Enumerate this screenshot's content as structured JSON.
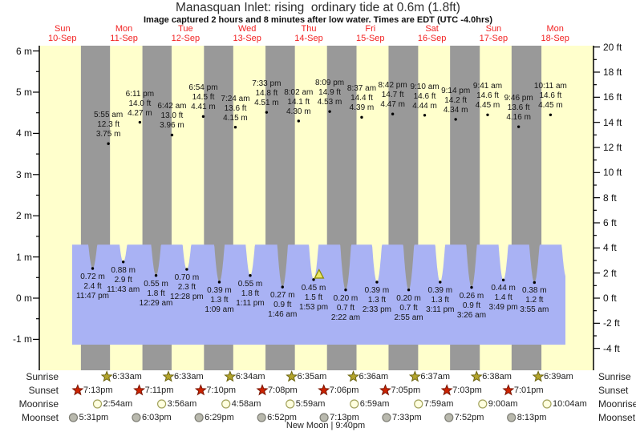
{
  "chart_data": {
    "type": "area",
    "title": "Manasquan Inlet: rising  ordinary tide at 0.6m (1.8ft)",
    "subtitle": "Image captured 2 hours and 8 minutes after low water. Times are EDT (UTC -4.0hrs)",
    "x_axis_days": [
      {
        "dow": "Sun",
        "date": "10-Sep"
      },
      {
        "dow": "Mon",
        "date": "11-Sep"
      },
      {
        "dow": "Tue",
        "date": "12-Sep"
      },
      {
        "dow": "Wed",
        "date": "13-Sep"
      },
      {
        "dow": "Thu",
        "date": "14-Sep"
      },
      {
        "dow": "Fri",
        "date": "15-Sep"
      },
      {
        "dow": "Sat",
        "date": "16-Sep"
      },
      {
        "dow": "Sun",
        "date": "17-Sep"
      },
      {
        "dow": "Mon",
        "date": "18-Sep"
      }
    ],
    "y_axis_left": {
      "unit": "m",
      "min": -1,
      "max": 6,
      "labels": [
        {
          "text": "6 m",
          "value": 6
        },
        {
          "text": "5 m",
          "value": 5
        },
        {
          "text": "4 m",
          "value": 4
        },
        {
          "text": "3 m",
          "value": 3
        },
        {
          "text": "2 m",
          "value": 2
        },
        {
          "text": "1 m",
          "value": 1
        },
        {
          "text": "0 m",
          "value": 0
        },
        {
          "text": "-1 m",
          "value": -1
        }
      ]
    },
    "y_axis_right": {
      "unit": "ft",
      "min": -4,
      "max": 20,
      "labels": [
        {
          "text": "20 ft",
          "value": 20
        },
        {
          "text": "18 ft",
          "value": 18
        },
        {
          "text": "16 ft",
          "value": 16
        },
        {
          "text": "14 ft",
          "value": 14
        },
        {
          "text": "12 ft",
          "value": 12
        },
        {
          "text": "10 ft",
          "value": 10
        },
        {
          "text": "8 ft",
          "value": 8
        },
        {
          "text": "6 ft",
          "value": 6
        },
        {
          "text": "4 ft",
          "value": 4
        },
        {
          "text": "2 ft",
          "value": 2
        },
        {
          "text": "0 ft",
          "value": 0
        },
        {
          "text": "-2 ft",
          "value": -2
        },
        {
          "text": "-4 ft",
          "value": -4
        }
      ]
    },
    "high_tides": [
      {
        "day": 1,
        "time": "5:55 am",
        "ft": "12.3 ft",
        "m": "3.75 m",
        "value_m": 3.75
      },
      {
        "day": 1,
        "time": "6:11 pm",
        "ft": "14.0 ft",
        "m": "4.27 m",
        "value_m": 4.27
      },
      {
        "day": 2,
        "time": "6:42 am",
        "ft": "13.0 ft",
        "m": "3.96 m",
        "value_m": 3.96
      },
      {
        "day": 2,
        "time": "6:54 pm",
        "ft": "14.5 ft",
        "m": "4.41 m",
        "value_m": 4.41
      },
      {
        "day": 3,
        "time": "7:24 am",
        "ft": "13.6 ft",
        "m": "4.15 m",
        "value_m": 4.15
      },
      {
        "day": 3,
        "time": "7:33 pm",
        "ft": "14.8 ft",
        "m": "4.51 m",
        "value_m": 4.51
      },
      {
        "day": 4,
        "time": "8:02 am",
        "ft": "14.1 ft",
        "m": "4.30 m",
        "value_m": 4.3
      },
      {
        "day": 4,
        "time": "8:09 pm",
        "ft": "14.9 ft",
        "m": "4.53 m",
        "value_m": 4.53
      },
      {
        "day": 5,
        "time": "8:37 am",
        "ft": "14.4 ft",
        "m": "4.39 m",
        "value_m": 4.39
      },
      {
        "day": 5,
        "time": "8:42 pm",
        "ft": "14.7 ft",
        "m": "4.47 m",
        "value_m": 4.47
      },
      {
        "day": 6,
        "time": "9:10 am",
        "ft": "14.6 ft",
        "m": "4.44 m",
        "value_m": 4.44
      },
      {
        "day": 6,
        "time": "9:14 pm",
        "ft": "14.2 ft",
        "m": "4.34 m",
        "value_m": 4.34
      },
      {
        "day": 7,
        "time": "9:41 am",
        "ft": "14.6 ft",
        "m": "4.45 m",
        "value_m": 4.45
      },
      {
        "day": 7,
        "time": "9:46 pm",
        "ft": "13.6 ft",
        "m": "4.16 m",
        "value_m": 4.16
      },
      {
        "day": 8,
        "time": "10:11 am",
        "ft": "14.6 ft",
        "m": "4.45 m",
        "value_m": 4.45
      }
    ],
    "low_tides": [
      {
        "day": 0,
        "time": "11:47 pm",
        "ft": "2.4 ft",
        "m": "0.72 m",
        "value_m": 0.72
      },
      {
        "day": 1,
        "time": "11:43 am",
        "ft": "2.9 ft",
        "m": "0.88 m",
        "value_m": 0.88
      },
      {
        "day": 2,
        "time": "12:29 am",
        "ft": "1.8 ft",
        "m": "0.55 m",
        "value_m": 0.55
      },
      {
        "day": 2,
        "time": "12:28 pm",
        "ft": "2.3 ft",
        "m": "0.70 m",
        "value_m": 0.7
      },
      {
        "day": 3,
        "time": "1:09 am",
        "ft": "1.3 ft",
        "m": "0.39 m",
        "value_m": 0.39
      },
      {
        "day": 3,
        "time": "1:11 pm",
        "ft": "1.8 ft",
        "m": "0.55 m",
        "value_m": 0.55
      },
      {
        "day": 4,
        "time": "1:46 am",
        "ft": "0.9 ft",
        "m": "0.27 m",
        "value_m": 0.27
      },
      {
        "day": 4,
        "time": "1:53 pm",
        "ft": "1.5 ft",
        "m": "0.45 m",
        "value_m": 0.45
      },
      {
        "day": 5,
        "time": "2:22 am",
        "ft": "0.7 ft",
        "m": "0.20 m",
        "value_m": 0.2
      },
      {
        "day": 5,
        "time": "2:33 pm",
        "ft": "1.3 ft",
        "m": "0.39 m",
        "value_m": 0.39
      },
      {
        "day": 6,
        "time": "2:55 am",
        "ft": "0.7 ft",
        "m": "0.20 m",
        "value_m": 0.2
      },
      {
        "day": 6,
        "time": "3:11 pm",
        "ft": "1.3 ft",
        "m": "0.39 m",
        "value_m": 0.39
      },
      {
        "day": 7,
        "time": "3:26 am",
        "ft": "0.9 ft",
        "m": "0.26 m",
        "value_m": 0.26
      },
      {
        "day": 7,
        "time": "3:49 pm",
        "ft": "1.4 ft",
        "m": "0.44 m",
        "value_m": 0.44
      },
      {
        "day": 8,
        "time": "3:55 am",
        "ft": "1.2 ft",
        "m": "0.38 m",
        "value_m": 0.38
      }
    ],
    "current_marker": {
      "near_low_tide": "1:53 pm",
      "day": 4,
      "offset_note": "2 hours and 8 minutes after low water"
    }
  },
  "astronomy": {
    "rows": [
      {
        "label": "Sunrise",
        "type": "sunrise",
        "events": [
          {
            "day": 1,
            "time": "6:33am"
          },
          {
            "day": 2,
            "time": "6:33am"
          },
          {
            "day": 3,
            "time": "6:34am"
          },
          {
            "day": 4,
            "time": "6:35am"
          },
          {
            "day": 5,
            "time": "6:36am"
          },
          {
            "day": 6,
            "time": "6:37am"
          },
          {
            "day": 7,
            "time": "6:38am"
          },
          {
            "day": 8,
            "time": "6:39am"
          }
        ]
      },
      {
        "label": "Sunset",
        "type": "sunset",
        "events": [
          {
            "day": 0,
            "time": "7:13pm"
          },
          {
            "day": 1,
            "time": "7:11pm"
          },
          {
            "day": 2,
            "time": "7:10pm"
          },
          {
            "day": 3,
            "time": "7:08pm"
          },
          {
            "day": 4,
            "time": "7:06pm"
          },
          {
            "day": 5,
            "time": "7:05pm"
          },
          {
            "day": 6,
            "time": "7:03pm"
          },
          {
            "day": 7,
            "time": "7:01pm"
          }
        ]
      },
      {
        "label": "Moonrise",
        "type": "moonrise",
        "events": [
          {
            "day": 1,
            "time": "2:54am"
          },
          {
            "day": 2,
            "time": "3:56am"
          },
          {
            "day": 3,
            "time": "4:58am"
          },
          {
            "day": 4,
            "time": "5:59am"
          },
          {
            "day": 5,
            "time": "6:59am"
          },
          {
            "day": 6,
            "time": "7:59am"
          },
          {
            "day": 7,
            "time": "9:00am"
          },
          {
            "day": 8,
            "time": "10:04am"
          }
        ]
      },
      {
        "label": "Moonset",
        "type": "moonset",
        "events": [
          {
            "day": 0,
            "time": "5:31pm"
          },
          {
            "day": 1,
            "time": "6:03pm"
          },
          {
            "day": 2,
            "time": "6:29pm"
          },
          {
            "day": 3,
            "time": "6:52pm"
          },
          {
            "day": 4,
            "time": "7:13pm"
          },
          {
            "day": 5,
            "time": "7:33pm"
          },
          {
            "day": 6,
            "time": "7:52pm"
          },
          {
            "day": 7,
            "time": "8:13pm"
          }
        ]
      }
    ],
    "moon_phase": "New Moon | 9:40pm"
  },
  "colors": {
    "day_band": "#ffffcc",
    "night_band": "#999999",
    "water": "#a9b2f4",
    "day_label": "#f22222",
    "sunrise_star": "#b3a42c",
    "sunrise_star_edge": "#6b6410",
    "sunset_star": "#cc2200",
    "sunset_star_edge": "#7a1500",
    "moonrise_circle": "#ffffdf",
    "moonrise_circle_edge": "#a2a25c",
    "moonset_circle": "#b9b9ae",
    "moonset_circle_edge": "#7d7d74",
    "current_marker": "#e8e565",
    "current_marker_edge": "#8a8a00",
    "tide_dot": "#000000",
    "axis": "#000000"
  }
}
